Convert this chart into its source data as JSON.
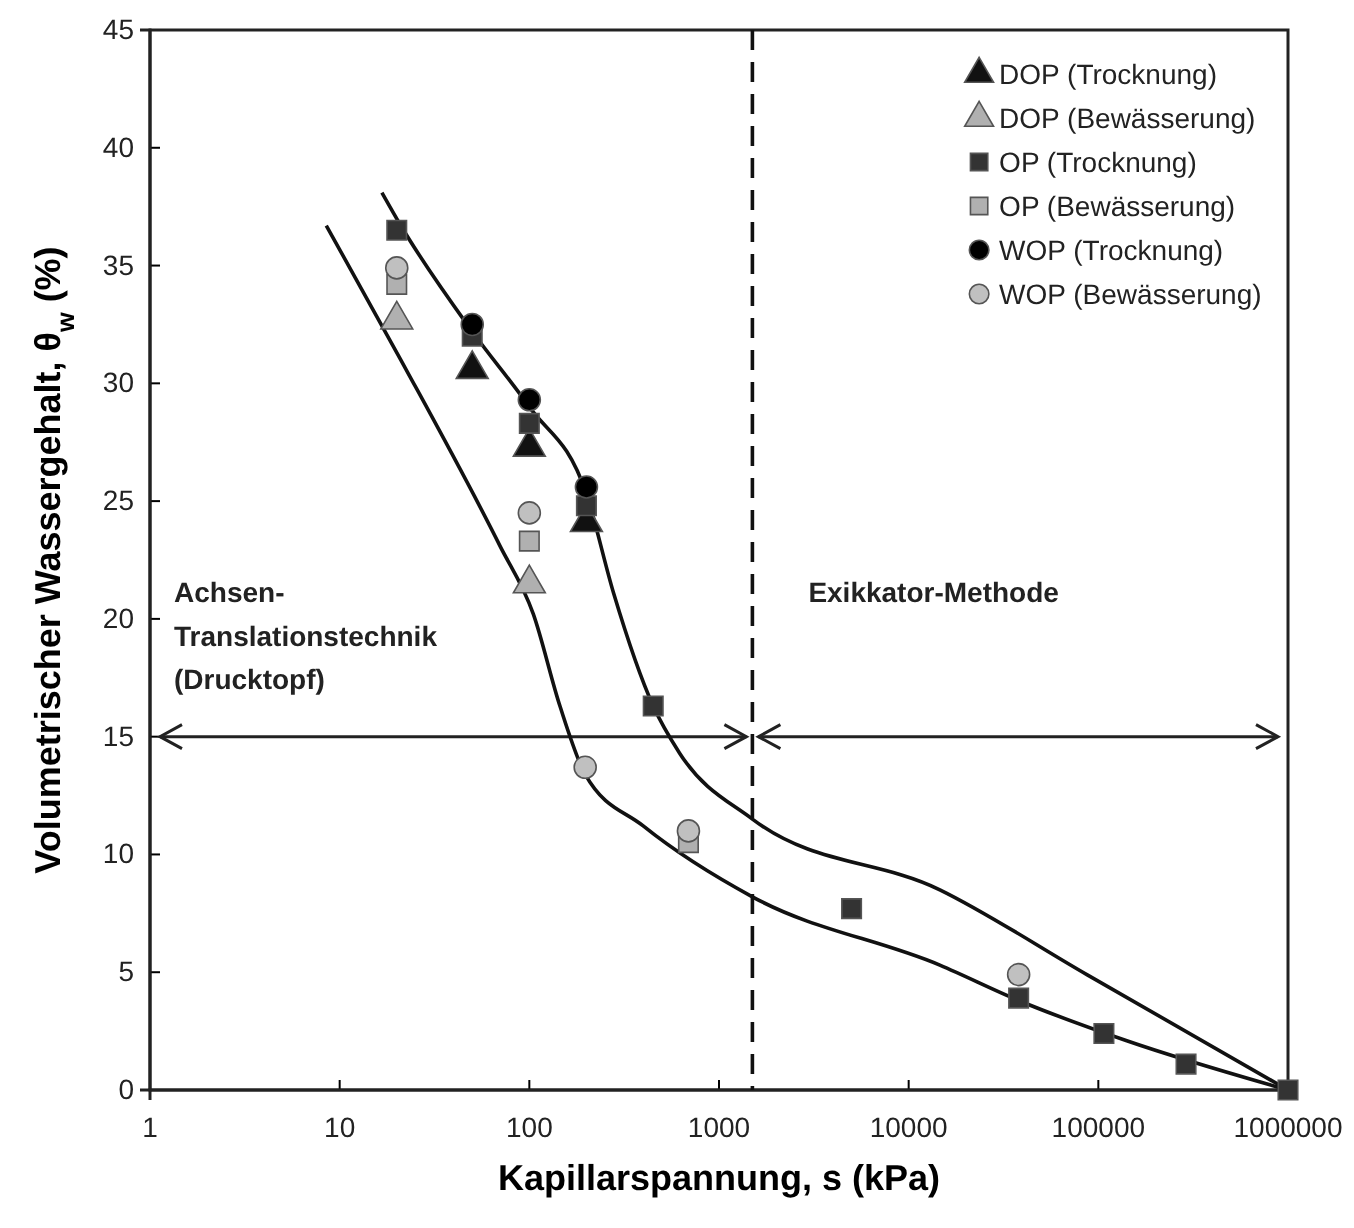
{
  "chart_data": {
    "type": "scatter",
    "xlabel": "Kapillarspannung, s (kPa)",
    "ylabel": "Volumetrischer Wassergehalt, θ$_{w}$ (%)",
    "log": "x",
    "xlim": [
      1,
      1000000
    ],
    "xticks": [
      1,
      10,
      100,
      1000,
      10000,
      100000,
      1000000
    ],
    "ylim": [
      0,
      45
    ],
    "yticks": [
      0,
      5,
      10,
      15,
      20,
      25,
      30,
      35,
      40,
      45
    ],
    "legend": "top right",
    "series": [
      {
        "type": "line",
        "marker": "none",
        "color": "#111111",
        "x": [
          16.7,
          21,
          50,
          100,
          200,
          278,
          450,
          620,
          1500,
          14600,
          87000,
          1000000
        ],
        "values": [
          38.1,
          36.7,
          32.2,
          29,
          25.3,
          21.1,
          16.3,
          14.3,
          11.5,
          8.5,
          4.9,
          0
        ]
      },
      {
        "type": "line",
        "marker": "none",
        "color": "#111111",
        "x": [
          8.5,
          21,
          70,
          105,
          145,
          197,
          400,
          1500,
          14600,
          38000,
          140000,
          1000000
        ],
        "values": [
          36.7,
          31,
          23.1,
          20.2,
          16.3,
          13.4,
          11.2,
          8.2,
          5.3,
          3.8,
          2.1,
          0
        ]
      },
      {
        "name": "DOP (Trocknung)",
        "marker": "triangle",
        "color": "#111111",
        "x": [
          50,
          100,
          200
        ],
        "values": [
          30.6,
          27.3,
          24.1
        ]
      },
      {
        "name": "DOP (Bewässerung)",
        "marker": "triangle",
        "color": "#b0b0b0",
        "x": [
          20,
          100
        ],
        "values": [
          32.7,
          21.5
        ]
      },
      {
        "name": "OP (Trocknung)",
        "marker": "square",
        "color": "#333333",
        "x": [
          20,
          50,
          100,
          200,
          450,
          5000,
          38000,
          107000,
          290000,
          1000000
        ],
        "values": [
          36.5,
          32.0,
          28.3,
          24.8,
          16.3,
          7.7,
          3.9,
          2.4,
          1.1,
          0
        ]
      },
      {
        "name": "OP (Bewässerung)",
        "marker": "square",
        "color": "#b0b0b0",
        "x": [
          20,
          100,
          197,
          690
        ],
        "values": [
          34.2,
          23.3,
          null,
          10.5
        ]
      },
      {
        "name": "WOP (Trocknung)",
        "marker": "circle",
        "color": "#000000",
        "x": [
          50,
          100,
          200
        ],
        "values": [
          32.5,
          29.3,
          25.6
        ]
      },
      {
        "name": "WOP (Bewässerung)",
        "marker": "circle",
        "color": "#c0c0c0",
        "x": [
          20,
          100,
          197,
          690,
          38000
        ],
        "values": [
          34.9,
          24.5,
          13.7,
          11.0,
          4.9
        ]
      }
    ],
    "ref_lines": [
      {
        "axis": "x",
        "value": 1500,
        "line_style": "dashed",
        "color": "#111111"
      }
    ],
    "annotations": [
      "Achsen-\nTranslationstechnik\n(Drucktopf)",
      "Exikkator-Methode"
    ]
  }
}
